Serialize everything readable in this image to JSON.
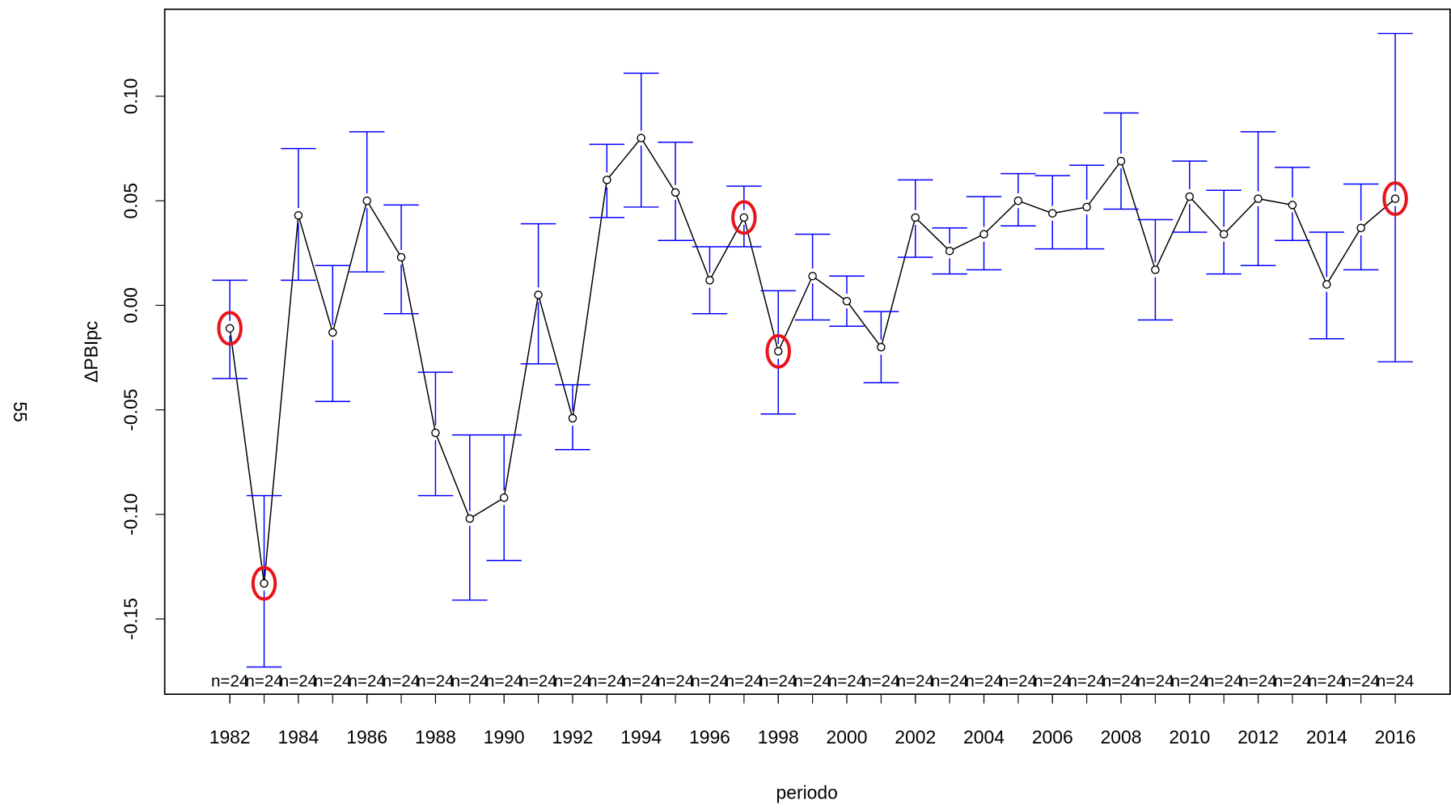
{
  "page_number": "55",
  "chart_data": {
    "type": "line",
    "xlabel": "periodo",
    "ylabel": "ΔPBIpc",
    "x": [
      1982,
      1983,
      1984,
      1985,
      1986,
      1987,
      1988,
      1989,
      1990,
      1991,
      1992,
      1993,
      1994,
      1995,
      1996,
      1997,
      1998,
      1999,
      2000,
      2001,
      2002,
      2003,
      2004,
      2005,
      2006,
      2007,
      2008,
      2009,
      2010,
      2011,
      2012,
      2013,
      2014,
      2015,
      2016
    ],
    "series": [
      {
        "color": "#000000",
        "error_color": "#0000ff",
        "values": [
          -0.011,
          -0.133,
          0.043,
          -0.013,
          0.05,
          0.023,
          -0.061,
          -0.102,
          -0.092,
          0.005,
          -0.054,
          0.06,
          0.08,
          0.054,
          0.012,
          0.042,
          -0.022,
          0.014,
          0.002,
          -0.02,
          0.042,
          0.026,
          0.034,
          0.05,
          0.044,
          0.047,
          0.069,
          0.017,
          0.052,
          0.034,
          0.051,
          0.048,
          0.01,
          0.037,
          0.051
        ],
        "lower": [
          -0.035,
          -0.173,
          0.012,
          -0.046,
          0.016,
          -0.004,
          -0.091,
          -0.141,
          -0.122,
          -0.028,
          -0.069,
          0.042,
          0.047,
          0.031,
          -0.004,
          0.028,
          -0.052,
          -0.007,
          -0.01,
          -0.037,
          0.023,
          0.015,
          0.017,
          0.038,
          0.027,
          0.027,
          0.046,
          -0.007,
          0.035,
          0.015,
          0.019,
          0.031,
          -0.016,
          0.017,
          -0.027
        ],
        "upper": [
          0.012,
          -0.091,
          0.075,
          0.019,
          0.083,
          0.048,
          -0.032,
          -0.062,
          -0.062,
          0.039,
          -0.038,
          0.077,
          0.111,
          0.078,
          0.028,
          0.057,
          0.007,
          0.034,
          0.014,
          -0.003,
          0.06,
          0.037,
          0.052,
          0.063,
          0.062,
          0.067,
          0.092,
          0.041,
          0.069,
          0.055,
          0.083,
          0.066,
          0.035,
          0.058,
          0.13
        ]
      }
    ],
    "n_labels": [
      "n=24",
      "n=24",
      "n=24",
      "n=24",
      "n=24",
      "n=24",
      "n=24",
      "n=24",
      "n=24",
      "n=24",
      "n=24",
      "n=24",
      "n=24",
      "n=24",
      "n=24",
      "n=24",
      "n=24",
      "n=24",
      "n=24",
      "n=24",
      "n=24",
      "n=24",
      "n=24",
      "n=24",
      "n=24",
      "n=24",
      "n=24",
      "n=24",
      "n=24",
      "n=24",
      "n=24",
      "n=24",
      "n=24",
      "n=24",
      "n=24"
    ],
    "highlight": [
      0,
      1,
      15,
      16,
      34
    ],
    "highlight_color": "#e8141c",
    "xlim": [
      1980.1,
      2017.6
    ],
    "xticks": [
      1982,
      1984,
      1986,
      1988,
      1990,
      1992,
      1994,
      1996,
      1998,
      2000,
      2002,
      2004,
      2006,
      2008,
      2010,
      2012,
      2014,
      2016
    ],
    "ylim": [
      -0.186,
      0.1416
    ],
    "yticks": [
      -0.15,
      {
        "value": -0.1,
        "label": "-0.10"
      },
      -0.05,
      {
        "value": 0,
        "label": "0.00"
      },
      0.05,
      {
        "value": 0.1,
        "label": "0.10"
      }
    ]
  }
}
